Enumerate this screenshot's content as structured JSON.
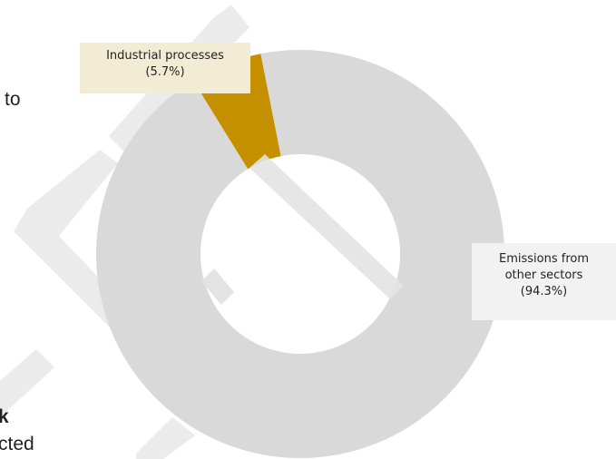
{
  "chart_data": {
    "type": "pie",
    "values": [
      5.7,
      94.3
    ],
    "value_labels": [
      "Industrial processes (5.7%)",
      "Emissions from other sectors (94.3%)"
    ],
    "colors": [
      "#c49000",
      "#d9d9d9"
    ]
  },
  "background_text": [
    "to",
    "k",
    "cted"
  ]
}
